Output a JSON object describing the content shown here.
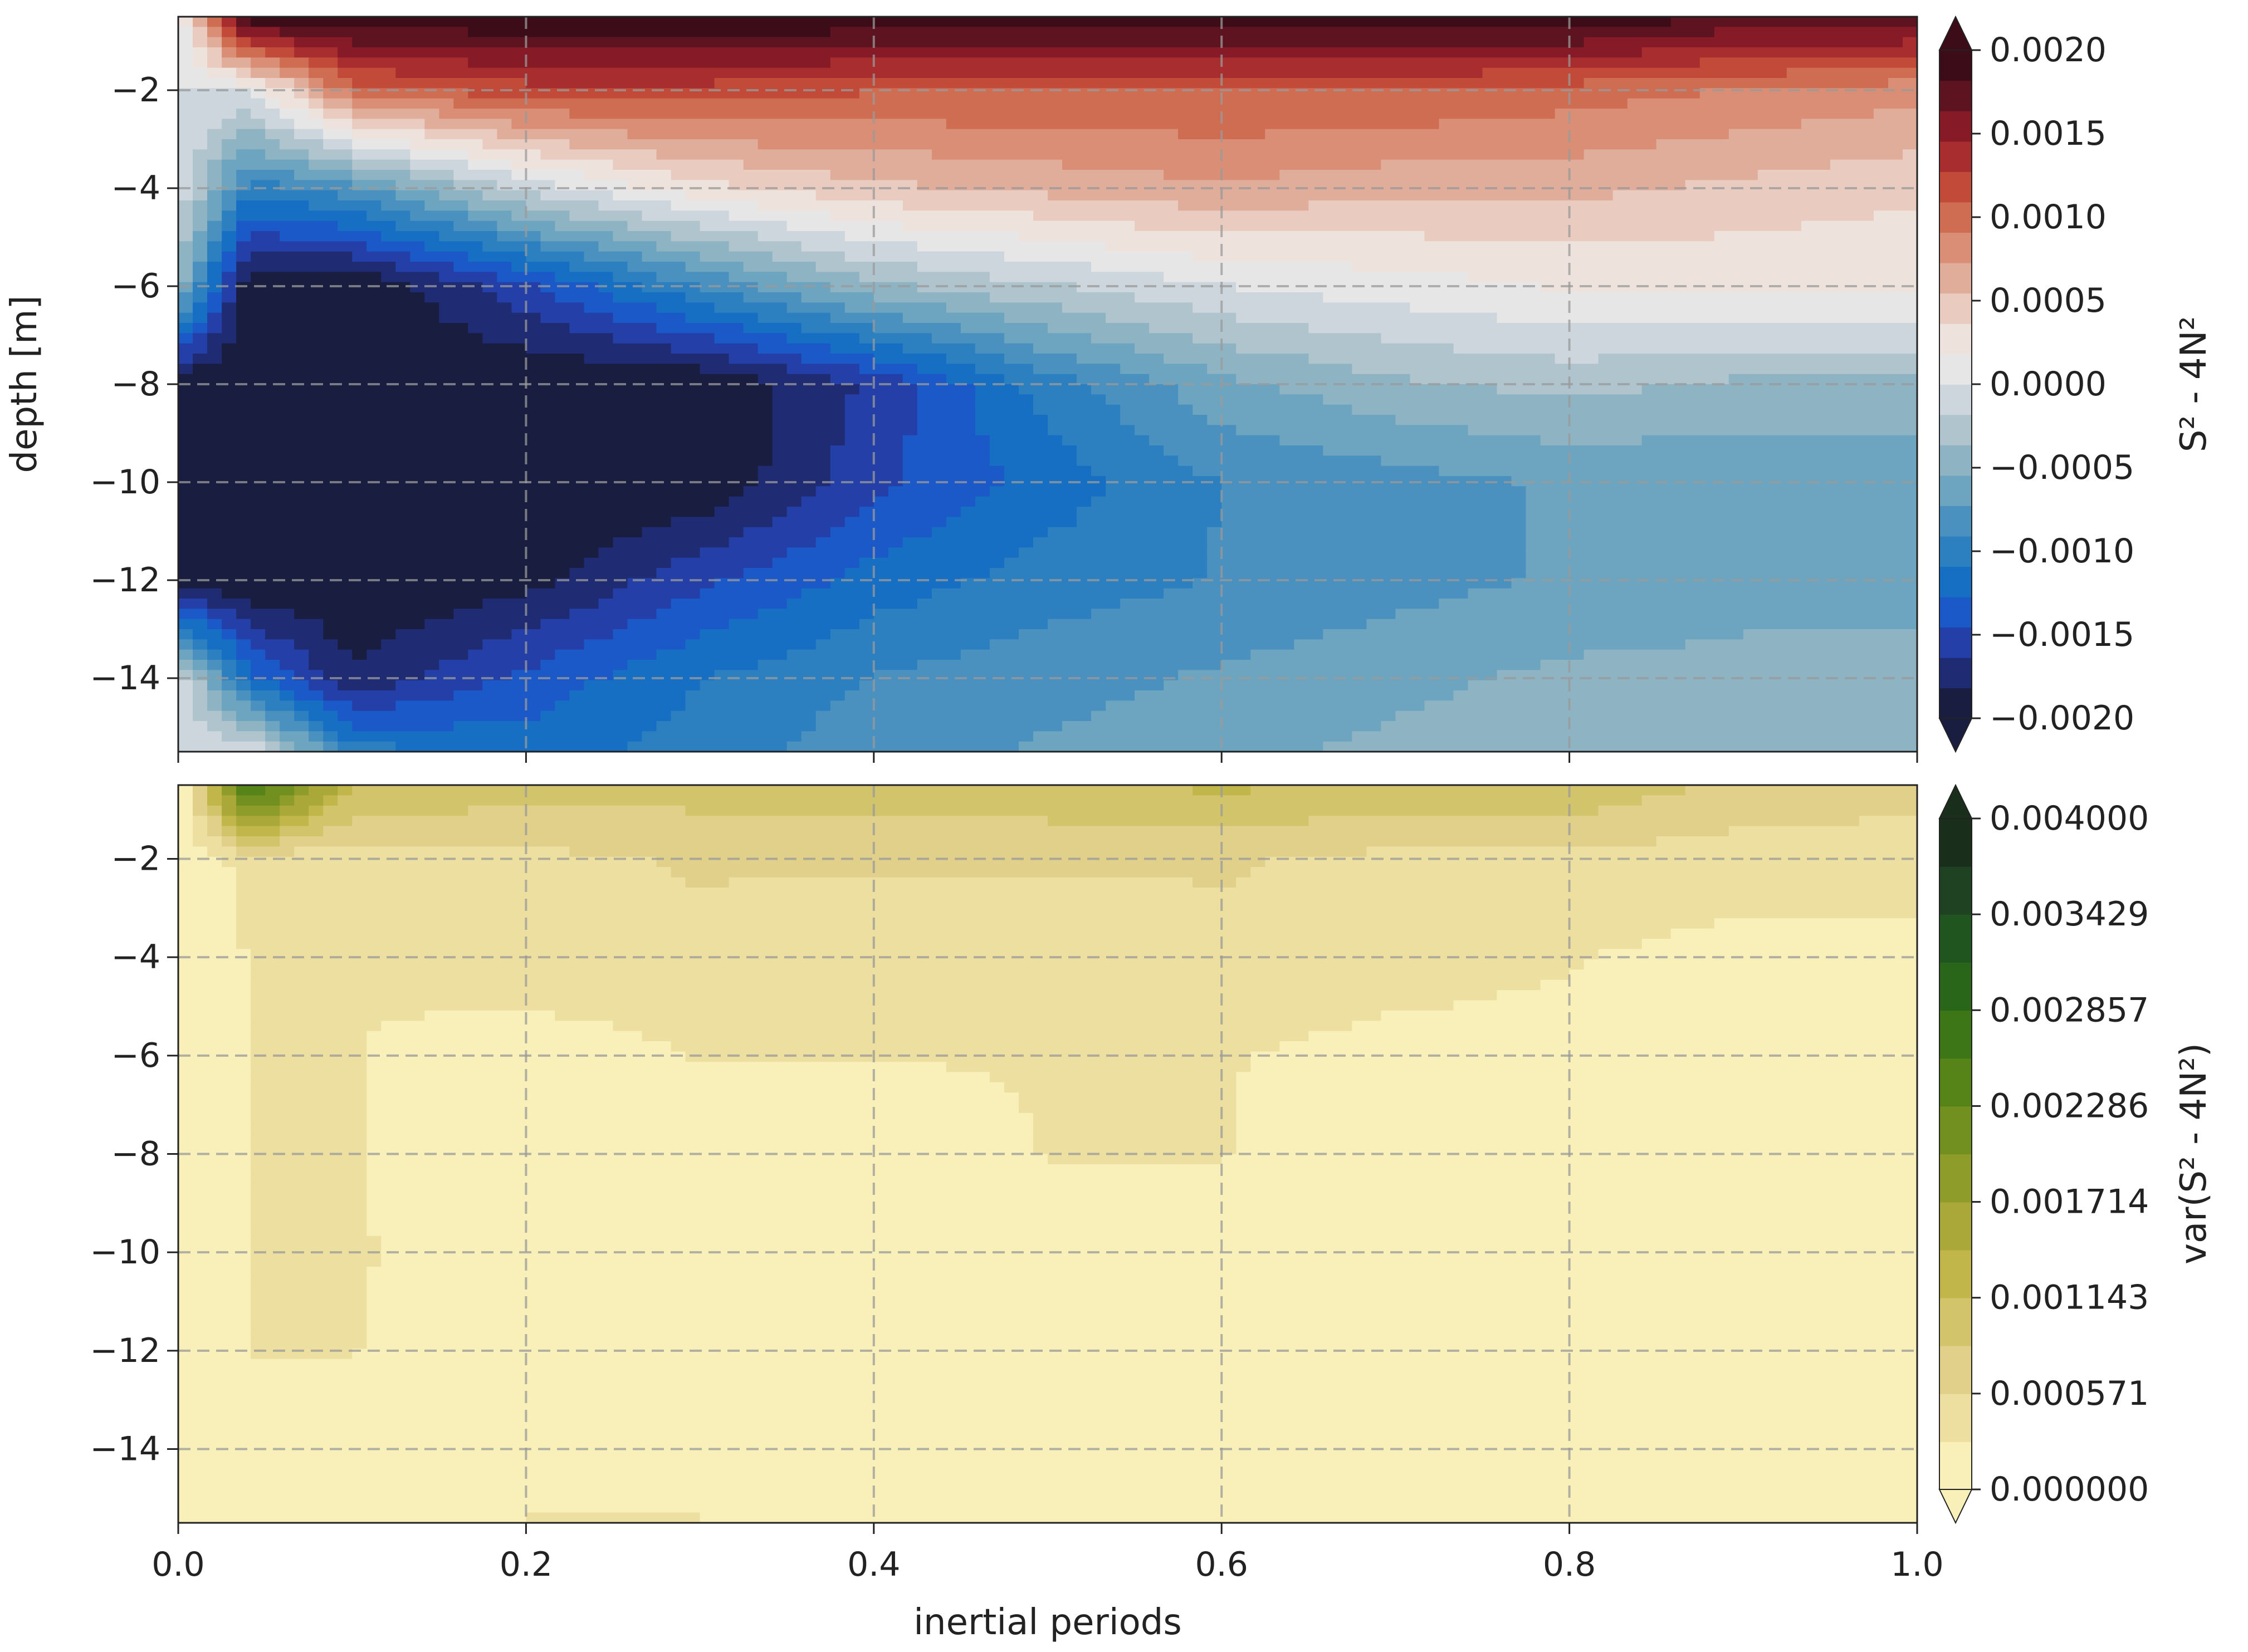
{
  "chart_data": [
    {
      "type": "heatmap",
      "subtype": "filled-contour",
      "title": "",
      "xlabel": "",
      "ylabel": "depth [m]",
      "xlim": [
        0.0,
        1.0
      ],
      "ylim": [
        -15.5,
        -0.5
      ],
      "x_ticks": [
        "0.0",
        "0.2",
        "0.4",
        "0.6",
        "0.8",
        "1.0"
      ],
      "x_ticks_labeled": false,
      "y_ticks": [
        -2,
        -4,
        -6,
        -8,
        -10,
        -12,
        -14
      ],
      "y_tick_labels": [
        "−2",
        "−4",
        "−6",
        "−8",
        "−10",
        "−12",
        "−14"
      ],
      "grid": true,
      "colormap": "diverging blue-white-red (balance)",
      "colorbar": {
        "label": "S² - 4N²",
        "range": [
          -0.002,
          0.002
        ],
        "extend": "both",
        "tick_labels": [
          "0.0020",
          "0.0015",
          "0.0010",
          "0.0005",
          "0.0000",
          "−0.0005",
          "−0.0010",
          "−0.0015",
          "−0.0020"
        ],
        "colors": [
          "#191e40",
          "#1f2c73",
          "#2440a8",
          "#1b59c9",
          "#176fc4",
          "#2d80c0",
          "#4a91c0",
          "#6da4bf",
          "#8eb3c2",
          "#b0c4ce",
          "#ccd6dc",
          "#e6e6e6",
          "#eee2dd",
          "#e9cbc0",
          "#e1ad9b",
          "#d98e75",
          "#cf6d52",
          "#c24a39",
          "#a82d2e",
          "#861a26",
          "#5e1320",
          "#3c0d18"
        ]
      },
      "depth_levels": [
        -0.5,
        -2,
        -4,
        -6,
        -8,
        -10,
        -12,
        -14,
        -15.5
      ],
      "time_x": [
        0.0,
        0.04,
        0.1,
        0.2,
        0.3,
        0.4,
        0.5,
        0.6,
        0.7,
        0.8,
        0.9,
        1.0
      ],
      "values": [
        [
          0.0,
          0.002,
          0.002,
          0.002,
          0.002,
          0.002,
          0.002,
          0.002,
          0.002,
          0.002,
          0.0018,
          0.0018
        ],
        [
          0.0,
          0.0,
          0.001,
          0.0012,
          0.0012,
          0.0011,
          0.0011,
          0.0011,
          0.0011,
          0.001,
          0.0009,
          0.0008
        ],
        [
          0.0,
          -0.001,
          -0.0008,
          -0.0001,
          0.0003,
          0.0005,
          0.0006,
          0.0007,
          0.0006,
          0.0006,
          0.0005,
          0.0004
        ],
        [
          -0.0004,
          -0.002,
          -0.002,
          -0.0015,
          -0.0009,
          -0.0004,
          -0.0002,
          0.0,
          0.0001,
          0.0002,
          0.0002,
          0.0002
        ],
        [
          -0.002,
          -0.002,
          -0.002,
          -0.002,
          -0.002,
          -0.0016,
          -0.001,
          -0.0006,
          -0.0004,
          -0.0003,
          -0.0004,
          -0.0004
        ],
        [
          -0.002,
          -0.002,
          -0.002,
          -0.002,
          -0.002,
          -0.0015,
          -0.0012,
          -0.0009,
          -0.0008,
          -0.0007,
          -0.0007,
          -0.0007
        ],
        [
          -0.002,
          -0.002,
          -0.002,
          -0.0019,
          -0.0015,
          -0.0012,
          -0.001,
          -0.0009,
          -0.0008,
          -0.0007,
          -0.0006,
          -0.0006
        ],
        [
          0.0,
          -0.0012,
          -0.0018,
          -0.0014,
          -0.0011,
          -0.0009,
          -0.0008,
          -0.0007,
          -0.0006,
          -0.0005,
          -0.0005,
          -0.0005
        ],
        [
          0.0,
          0.0,
          -0.001,
          -0.0012,
          -0.001,
          -0.0008,
          -0.0007,
          -0.0006,
          -0.0005,
          -0.0004,
          -0.0004,
          -0.0004
        ]
      ]
    },
    {
      "type": "heatmap",
      "subtype": "filled-contour",
      "title": "",
      "xlabel": "inertial periods",
      "ylabel": "",
      "xlim": [
        0.0,
        1.0
      ],
      "ylim": [
        -15.5,
        -0.5
      ],
      "x_ticks": [
        "0.0",
        "0.2",
        "0.4",
        "0.6",
        "0.8",
        "1.0"
      ],
      "x_ticks_labeled": true,
      "y_ticks": [
        -2,
        -4,
        -6,
        -8,
        -10,
        -12,
        -14
      ],
      "y_tick_labels": [
        "−2",
        "−4",
        "−6",
        "−8",
        "−10",
        "−12",
        "−14"
      ],
      "grid": true,
      "colormap": "sequential yellow-green (speed)",
      "colorbar": {
        "label": "var(S² - 4N²)",
        "range": [
          0.0,
          0.004
        ],
        "extend": "both",
        "tick_labels": [
          "0.004000",
          "0.003429",
          "0.002857",
          "0.002286",
          "0.001714",
          "0.001143",
          "0.000571",
          "0.000000"
        ],
        "colors": [
          "#f8f0b8",
          "#ecdfa0",
          "#e0d08a",
          "#d2c46b",
          "#c0b64a",
          "#a9a838",
          "#8e9c2a",
          "#72901f",
          "#568419",
          "#3d7617",
          "#2a6619",
          "#215520",
          "#1e4222",
          "#1a2e1c"
        ]
      },
      "depth_levels": [
        -0.5,
        -2,
        -4,
        -6,
        -8,
        -10,
        -12,
        -14,
        -15.5
      ],
      "time_x": [
        0.0,
        0.04,
        0.1,
        0.2,
        0.3,
        0.4,
        0.5,
        0.6,
        0.7,
        0.8,
        0.9,
        1.0
      ],
      "values": [
        [
          0.0,
          0.0028,
          0.0012,
          0.001,
          0.001,
          0.001,
          0.0011,
          0.0012,
          0.0011,
          0.0011,
          0.0008,
          0.0007
        ],
        [
          0.0,
          0.0004,
          0.0004,
          0.0005,
          0.0006,
          0.0006,
          0.0006,
          0.0006,
          0.0005,
          0.0005,
          0.0004,
          0.0004
        ],
        [
          0.0,
          0.0003,
          0.0003,
          0.0005,
          0.0005,
          0.0004,
          0.0004,
          0.0005,
          0.0004,
          0.0003,
          0.0002,
          0.0002
        ],
        [
          0.0,
          0.0003,
          0.0003,
          0.0001,
          0.0003,
          0.0003,
          0.0003,
          0.0003,
          0.0002,
          0.0002,
          0.0001,
          0.0001
        ],
        [
          0.0,
          0.0003,
          0.0003,
          0.0001,
          0.0001,
          0.0001,
          0.0003,
          0.0003,
          0.0001,
          0.0001,
          0.0001,
          0.0001
        ],
        [
          0.0,
          0.0003,
          0.0003,
          0.0002,
          0.0001,
          0.0001,
          0.0001,
          0.0001,
          0.0001,
          0.0001,
          0.0001,
          0.0001
        ],
        [
          0.0,
          0.0003,
          0.0003,
          0.0001,
          0.0001,
          0.0001,
          0.0001,
          0.0001,
          0.0001,
          0.0001,
          0.0001,
          0.0001
        ],
        [
          0.0,
          0.0001,
          0.0001,
          0.0001,
          0.0001,
          0.0001,
          0.0001,
          0.0001,
          0.0001,
          0.0001,
          0.0001,
          0.0001
        ],
        [
          0.0,
          0.0001,
          0.0001,
          0.0003,
          0.0003,
          0.0001,
          0.0001,
          0.0001,
          0.0001,
          0.0001,
          0.0001,
          0.0001
        ]
      ]
    }
  ]
}
